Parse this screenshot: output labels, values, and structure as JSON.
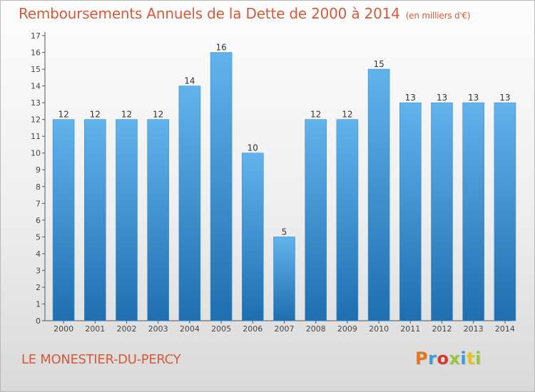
{
  "header": {
    "title": "Remboursements Annuels de la Dette de 2000 à 2014",
    "subtitle": "(en milliers d'€)"
  },
  "footer": {
    "commune": "LE MONESTIER-DU-PERCY",
    "brand": "Proxiti",
    "brand_colors": [
      "#e8731c",
      "#3c9bd9",
      "#d63a2b",
      "#9bc43c",
      "#3c9bd9",
      "#e8c21c",
      "#9bc43c"
    ]
  },
  "colors": {
    "title": "#d55a3a",
    "bar_light": "#62b2ec",
    "bar_dark": "#1f6fb0"
  },
  "chart_data": {
    "type": "bar",
    "title": "Remboursements Annuels de la Dette de 2000 à 2014",
    "subtitle": "(en milliers d'€)",
    "xlabel": "",
    "ylabel": "",
    "categories": [
      "2000",
      "2001",
      "2002",
      "2003",
      "2004",
      "2005",
      "2006",
      "2007",
      "2008",
      "2009",
      "2010",
      "2011",
      "2012",
      "2013",
      "2014"
    ],
    "values": [
      12,
      12,
      12,
      12,
      14,
      16,
      10,
      5,
      12,
      12,
      15,
      13,
      13,
      13,
      13
    ],
    "ylim": [
      0,
      17
    ],
    "yticks": [
      0,
      1,
      2,
      3,
      4,
      5,
      6,
      7,
      8,
      9,
      10,
      11,
      12,
      13,
      14,
      15,
      16,
      17
    ],
    "grid": false,
    "data_labels": true
  }
}
